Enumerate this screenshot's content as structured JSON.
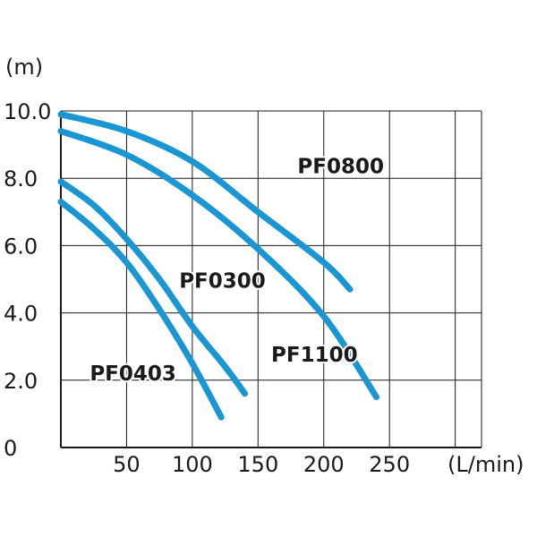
{
  "chart_data": {
    "type": "line",
    "title": "",
    "y_unit": "(m)",
    "x_unit": "(L/min)",
    "xlim": [
      0,
      320
    ],
    "ylim": [
      0,
      10
    ],
    "grid": true,
    "x_ticks": [
      {
        "value": 50,
        "label": "50"
      },
      {
        "value": 100,
        "label": "100"
      },
      {
        "value": 150,
        "label": "150"
      },
      {
        "value": 200,
        "label": "200"
      },
      {
        "value": 250,
        "label": "250"
      }
    ],
    "y_ticks": [
      {
        "value": 0,
        "label": "0"
      },
      {
        "value": 2,
        "label": "2.0"
      },
      {
        "value": 4,
        "label": "4.0"
      },
      {
        "value": 6,
        "label": "6.0"
      },
      {
        "value": 8,
        "label": "8.0"
      },
      {
        "value": 10,
        "label": "10.0"
      }
    ],
    "series": [
      {
        "name": "PF0800",
        "color": "#1a96d2",
        "points": [
          [
            0,
            9.9
          ],
          [
            50,
            9.4
          ],
          [
            100,
            8.5
          ],
          [
            150,
            7.0
          ],
          [
            200,
            5.5
          ],
          [
            220,
            4.7
          ]
        ]
      },
      {
        "name": "PF1100",
        "color": "#1a96d2",
        "points": [
          [
            0,
            9.4
          ],
          [
            50,
            8.7
          ],
          [
            100,
            7.5
          ],
          [
            150,
            5.9
          ],
          [
            200,
            3.9
          ],
          [
            240,
            1.5
          ]
        ]
      },
      {
        "name": "PF0300",
        "color": "#1a96d2",
        "points": [
          [
            0,
            7.9
          ],
          [
            25,
            7.2
          ],
          [
            50,
            6.2
          ],
          [
            75,
            5.0
          ],
          [
            100,
            3.6
          ],
          [
            125,
            2.4
          ],
          [
            140,
            1.6
          ]
        ]
      },
      {
        "name": "PF0403",
        "color": "#1a96d2",
        "points": [
          [
            0,
            7.3
          ],
          [
            25,
            6.5
          ],
          [
            50,
            5.5
          ],
          [
            75,
            4.1
          ],
          [
            100,
            2.5
          ],
          [
            122,
            0.9
          ]
        ]
      }
    ],
    "series_labels": [
      {
        "name": "PF0800",
        "anchor": [
          180,
          8.15
        ]
      },
      {
        "name": "PF0300",
        "anchor": [
          90,
          4.75
        ]
      },
      {
        "name": "PF1100",
        "anchor": [
          160,
          2.55
        ]
      },
      {
        "name": "PF0403",
        "anchor": [
          22,
          2.0
        ]
      }
    ]
  }
}
